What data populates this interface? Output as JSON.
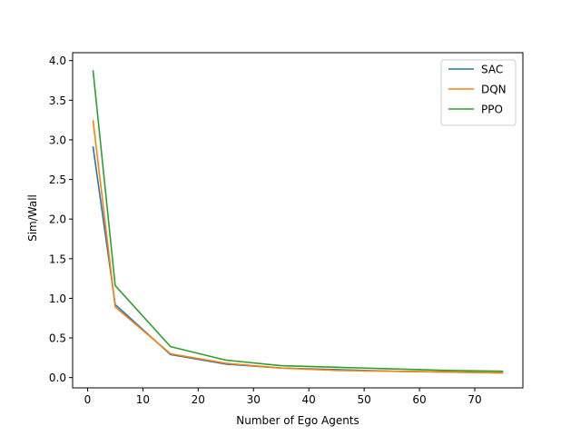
{
  "chart_data": {
    "type": "line",
    "title": "",
    "xlabel": "Number of Ego Agents",
    "ylabel": "Sim/Wall",
    "xlim": [
      -2.7,
      78.7
    ],
    "ylim": [
      -0.13,
      4.1
    ],
    "xticks": [
      0,
      10,
      20,
      30,
      40,
      50,
      60,
      70
    ],
    "xtick_labels": [
      "0",
      "10",
      "20",
      "30",
      "40",
      "50",
      "60",
      "70"
    ],
    "yticks": [
      0.0,
      0.5,
      1.0,
      1.5,
      2.0,
      2.5,
      3.0,
      3.5,
      4.0
    ],
    "ytick_labels": [
      "0.0",
      "0.5",
      "1.0",
      "1.5",
      "2.0",
      "2.5",
      "3.0",
      "3.5",
      "4.0"
    ],
    "grid": false,
    "legend": "top-right",
    "series": [
      {
        "name": "SAC",
        "color": "#1f77b4",
        "x": [
          1,
          5,
          15,
          25,
          35,
          45,
          55,
          65,
          75
        ],
        "y": [
          2.91,
          0.92,
          0.29,
          0.17,
          0.12,
          0.1,
          0.08,
          0.07,
          0.06
        ]
      },
      {
        "name": "DQN",
        "color": "#ff7f0e",
        "x": [
          1,
          5,
          15,
          25,
          35,
          45,
          55,
          65,
          75
        ],
        "y": [
          3.24,
          0.89,
          0.3,
          0.18,
          0.12,
          0.09,
          0.08,
          0.07,
          0.06
        ]
      },
      {
        "name": "PPO",
        "color": "#2ca02c",
        "x": [
          1,
          5,
          15,
          25,
          35,
          45,
          55,
          65,
          75
        ],
        "y": [
          3.87,
          1.16,
          0.39,
          0.22,
          0.15,
          0.13,
          0.11,
          0.09,
          0.08
        ]
      }
    ]
  }
}
